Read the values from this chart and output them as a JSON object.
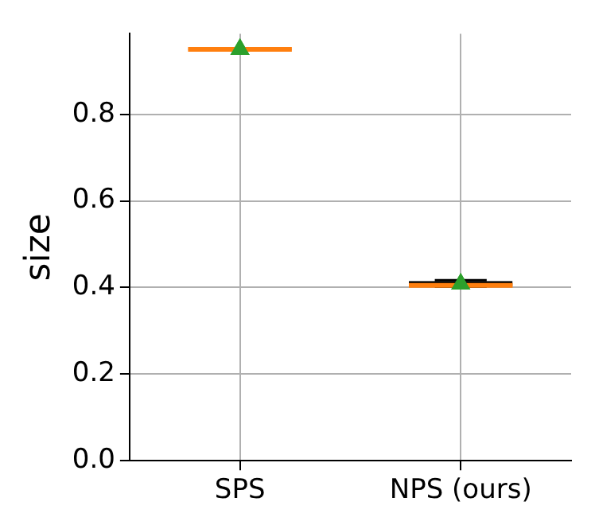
{
  "chart_data": {
    "type": "box",
    "ylabel": "size",
    "categories": [
      "SPS",
      "NPS (ours)"
    ],
    "boxes": [
      {
        "low": 0.948,
        "q1": 0.949,
        "median": 0.95,
        "q3": 0.951,
        "high": 0.952,
        "mean": 0.95
      },
      {
        "low": 0.402,
        "q1": 0.403,
        "median": 0.405,
        "q3": 0.415,
        "high": 0.417,
        "mean": 0.408
      }
    ],
    "ylim": [
      0,
      0.986
    ],
    "yticks": [
      {
        "value": 0,
        "label": "0.0"
      },
      0.2,
      0.4,
      0.6,
      0.8
    ],
    "grid": true,
    "marker": "triangle"
  }
}
